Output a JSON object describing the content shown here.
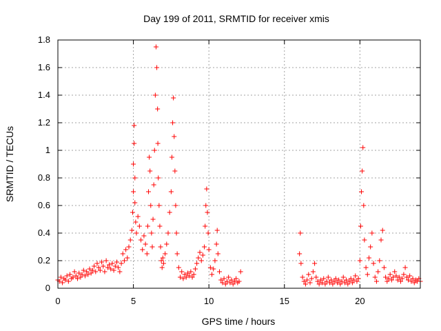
{
  "chart_data": {
    "type": "scatter",
    "title": "Day 199 of 2011, SRMTID for receiver xmis",
    "xlabel": "GPS time / hours",
    "ylabel": "SRMTID / TECUs",
    "xlim": [
      0,
      24
    ],
    "ylim": [
      0,
      1.8
    ],
    "xticks": [
      0,
      5,
      10,
      15,
      20
    ],
    "xtick_labels": [
      "0",
      "5",
      "10",
      "15",
      "20"
    ],
    "yticks": [
      0,
      0.2,
      0.4,
      0.6,
      0.8,
      1.0,
      1.2,
      1.4,
      1.6,
      1.8
    ],
    "ytick_labels": [
      "0",
      "0.2",
      "0.4",
      "0.6",
      "0.8",
      "1",
      "1.2",
      "1.4",
      "1.6",
      "1.8"
    ],
    "grid": true,
    "marker": "+",
    "color": "#ff0000",
    "series": [
      {
        "name": "SRMTID",
        "points": [
          [
            0.0,
            0.06
          ],
          [
            0.1,
            0.05
          ],
          [
            0.2,
            0.08
          ],
          [
            0.3,
            0.04
          ],
          [
            0.4,
            0.07
          ],
          [
            0.5,
            0.06
          ],
          [
            0.6,
            0.09
          ],
          [
            0.7,
            0.05
          ],
          [
            0.8,
            0.1
          ],
          [
            0.9,
            0.07
          ],
          [
            1.0,
            0.08
          ],
          [
            1.1,
            0.12
          ],
          [
            1.2,
            0.09
          ],
          [
            1.3,
            0.07
          ],
          [
            1.4,
            0.11
          ],
          [
            1.5,
            0.08
          ],
          [
            1.6,
            0.1
          ],
          [
            1.7,
            0.13
          ],
          [
            1.8,
            0.09
          ],
          [
            1.9,
            0.12
          ],
          [
            2.0,
            0.1
          ],
          [
            2.1,
            0.14
          ],
          [
            2.2,
            0.11
          ],
          [
            2.3,
            0.13
          ],
          [
            2.4,
            0.16
          ],
          [
            2.5,
            0.12
          ],
          [
            2.6,
            0.18
          ],
          [
            2.7,
            0.15
          ],
          [
            2.8,
            0.13
          ],
          [
            2.9,
            0.19
          ],
          [
            3.0,
            0.16
          ],
          [
            3.1,
            0.12
          ],
          [
            3.2,
            0.2
          ],
          [
            3.3,
            0.15
          ],
          [
            3.4,
            0.17
          ],
          [
            3.5,
            0.14
          ],
          [
            3.6,
            0.18
          ],
          [
            3.7,
            0.13
          ],
          [
            3.8,
            0.16
          ],
          [
            3.9,
            0.19
          ],
          [
            4.0,
            0.15
          ],
          [
            4.1,
            0.12
          ],
          [
            4.2,
            0.18
          ],
          [
            4.3,
            0.25
          ],
          [
            4.4,
            0.2
          ],
          [
            4.5,
            0.28
          ],
          [
            4.6,
            0.22
          ],
          [
            4.7,
            0.3
          ],
          [
            4.8,
            0.35
          ],
          [
            4.9,
            0.42
          ],
          [
            4.95,
            0.55
          ],
          [
            5.0,
            0.7
          ],
          [
            5.0,
            0.9
          ],
          [
            5.05,
            1.05
          ],
          [
            5.05,
            1.18
          ],
          [
            5.1,
            0.8
          ],
          [
            5.1,
            0.62
          ],
          [
            5.15,
            0.48
          ],
          [
            5.2,
            0.4
          ],
          [
            5.3,
            0.52
          ],
          [
            5.4,
            0.45
          ],
          [
            5.5,
            0.35
          ],
          [
            5.6,
            0.28
          ],
          [
            5.7,
            0.38
          ],
          [
            5.8,
            0.32
          ],
          [
            5.9,
            0.25
          ],
          [
            5.95,
            0.45
          ],
          [
            6.0,
            0.7
          ],
          [
            6.05,
            0.95
          ],
          [
            6.1,
            0.85
          ],
          [
            6.15,
            0.6
          ],
          [
            6.2,
            0.4
          ],
          [
            6.25,
            0.3
          ],
          [
            6.3,
            0.5
          ],
          [
            6.35,
            0.75
          ],
          [
            6.4,
            1.0
          ],
          [
            6.45,
            1.4
          ],
          [
            6.5,
            1.75
          ],
          [
            6.55,
            1.6
          ],
          [
            6.6,
            1.3
          ],
          [
            6.62,
            1.05
          ],
          [
            6.65,
            0.8
          ],
          [
            6.7,
            0.6
          ],
          [
            6.75,
            0.45
          ],
          [
            6.8,
            0.3
          ],
          [
            6.85,
            0.2
          ],
          [
            6.9,
            0.15
          ],
          [
            6.95,
            0.22
          ],
          [
            7.0,
            0.18
          ],
          [
            7.1,
            0.25
          ],
          [
            7.2,
            0.32
          ],
          [
            7.3,
            0.4
          ],
          [
            7.4,
            0.55
          ],
          [
            7.5,
            0.7
          ],
          [
            7.55,
            0.95
          ],
          [
            7.6,
            1.2
          ],
          [
            7.65,
            1.38
          ],
          [
            7.7,
            1.1
          ],
          [
            7.75,
            0.85
          ],
          [
            7.8,
            0.6
          ],
          [
            7.85,
            0.4
          ],
          [
            7.9,
            0.25
          ],
          [
            8.0,
            0.15
          ],
          [
            8.1,
            0.08
          ],
          [
            8.2,
            0.12
          ],
          [
            8.3,
            0.07
          ],
          [
            8.4,
            0.1
          ],
          [
            8.5,
            0.08
          ],
          [
            8.6,
            0.11
          ],
          [
            8.7,
            0.09
          ],
          [
            8.8,
            0.12
          ],
          [
            8.9,
            0.08
          ],
          [
            9.0,
            0.1
          ],
          [
            9.1,
            0.14
          ],
          [
            9.2,
            0.18
          ],
          [
            9.3,
            0.22
          ],
          [
            9.4,
            0.26
          ],
          [
            9.5,
            0.2
          ],
          [
            9.6,
            0.24
          ],
          [
            9.7,
            0.3
          ],
          [
            9.75,
            0.45
          ],
          [
            9.8,
            0.6
          ],
          [
            9.85,
            0.72
          ],
          [
            9.9,
            0.55
          ],
          [
            9.95,
            0.4
          ],
          [
            10.0,
            0.28
          ],
          [
            10.1,
            0.15
          ],
          [
            10.2,
            0.1
          ],
          [
            10.3,
            0.14
          ],
          [
            10.4,
            0.2
          ],
          [
            10.5,
            0.32
          ],
          [
            10.55,
            0.42
          ],
          [
            10.6,
            0.25
          ],
          [
            10.7,
            0.12
          ],
          [
            10.8,
            0.06
          ],
          [
            10.9,
            0.04
          ],
          [
            11.0,
            0.07
          ],
          [
            11.1,
            0.03
          ],
          [
            11.2,
            0.05
          ],
          [
            11.3,
            0.08
          ],
          [
            11.4,
            0.04
          ],
          [
            11.5,
            0.06
          ],
          [
            11.6,
            0.03
          ],
          [
            11.7,
            0.05
          ],
          [
            11.8,
            0.07
          ],
          [
            11.9,
            0.04
          ],
          [
            12.0,
            0.05
          ],
          [
            12.1,
            0.12
          ],
          [
            16.0,
            0.25
          ],
          [
            16.05,
            0.4
          ],
          [
            16.1,
            0.18
          ],
          [
            16.2,
            0.08
          ],
          [
            16.3,
            0.05
          ],
          [
            16.4,
            0.03
          ],
          [
            16.5,
            0.06
          ],
          [
            16.6,
            0.1
          ],
          [
            16.7,
            0.04
          ],
          [
            16.8,
            0.07
          ],
          [
            16.9,
            0.12
          ],
          [
            17.0,
            0.18
          ],
          [
            17.1,
            0.08
          ],
          [
            17.2,
            0.05
          ],
          [
            17.3,
            0.03
          ],
          [
            17.4,
            0.06
          ],
          [
            17.5,
            0.04
          ],
          [
            17.6,
            0.07
          ],
          [
            17.7,
            0.03
          ],
          [
            17.8,
            0.05
          ],
          [
            17.9,
            0.08
          ],
          [
            18.0,
            0.04
          ],
          [
            18.1,
            0.06
          ],
          [
            18.2,
            0.03
          ],
          [
            18.3,
            0.05
          ],
          [
            18.4,
            0.07
          ],
          [
            18.5,
            0.04
          ],
          [
            18.6,
            0.06
          ],
          [
            18.7,
            0.03
          ],
          [
            18.8,
            0.05
          ],
          [
            18.9,
            0.08
          ],
          [
            19.0,
            0.04
          ],
          [
            19.1,
            0.06
          ],
          [
            19.2,
            0.03
          ],
          [
            19.3,
            0.05
          ],
          [
            19.4,
            0.07
          ],
          [
            19.5,
            0.04
          ],
          [
            19.6,
            0.06
          ],
          [
            19.7,
            0.09
          ],
          [
            19.8,
            0.05
          ],
          [
            19.9,
            0.07
          ],
          [
            20.0,
            0.2
          ],
          [
            20.05,
            0.45
          ],
          [
            20.1,
            0.7
          ],
          [
            20.15,
            0.85
          ],
          [
            20.2,
            1.02
          ],
          [
            20.25,
            0.6
          ],
          [
            20.3,
            0.35
          ],
          [
            20.4,
            0.15
          ],
          [
            20.5,
            0.1
          ],
          [
            20.6,
            0.22
          ],
          [
            20.7,
            0.3
          ],
          [
            20.8,
            0.4
          ],
          [
            20.9,
            0.18
          ],
          [
            21.0,
            0.08
          ],
          [
            21.1,
            0.05
          ],
          [
            21.2,
            0.12
          ],
          [
            21.3,
            0.2
          ],
          [
            21.4,
            0.35
          ],
          [
            21.5,
            0.42
          ],
          [
            21.6,
            0.15
          ],
          [
            21.7,
            0.08
          ],
          [
            21.8,
            0.05
          ],
          [
            21.9,
            0.07
          ],
          [
            22.0,
            0.1
          ],
          [
            22.1,
            0.06
          ],
          [
            22.2,
            0.08
          ],
          [
            22.3,
            0.12
          ],
          [
            22.4,
            0.09
          ],
          [
            22.5,
            0.06
          ],
          [
            22.6,
            0.08
          ],
          [
            22.7,
            0.05
          ],
          [
            22.8,
            0.07
          ],
          [
            22.9,
            0.1
          ],
          [
            23.0,
            0.15
          ],
          [
            23.1,
            0.08
          ],
          [
            23.2,
            0.06
          ],
          [
            23.3,
            0.09
          ],
          [
            23.4,
            0.05
          ],
          [
            23.5,
            0.07
          ],
          [
            23.6,
            0.04
          ],
          [
            23.7,
            0.06
          ],
          [
            23.8,
            0.05
          ],
          [
            23.9,
            0.07
          ],
          [
            24.0,
            0.05
          ]
        ]
      }
    ]
  }
}
